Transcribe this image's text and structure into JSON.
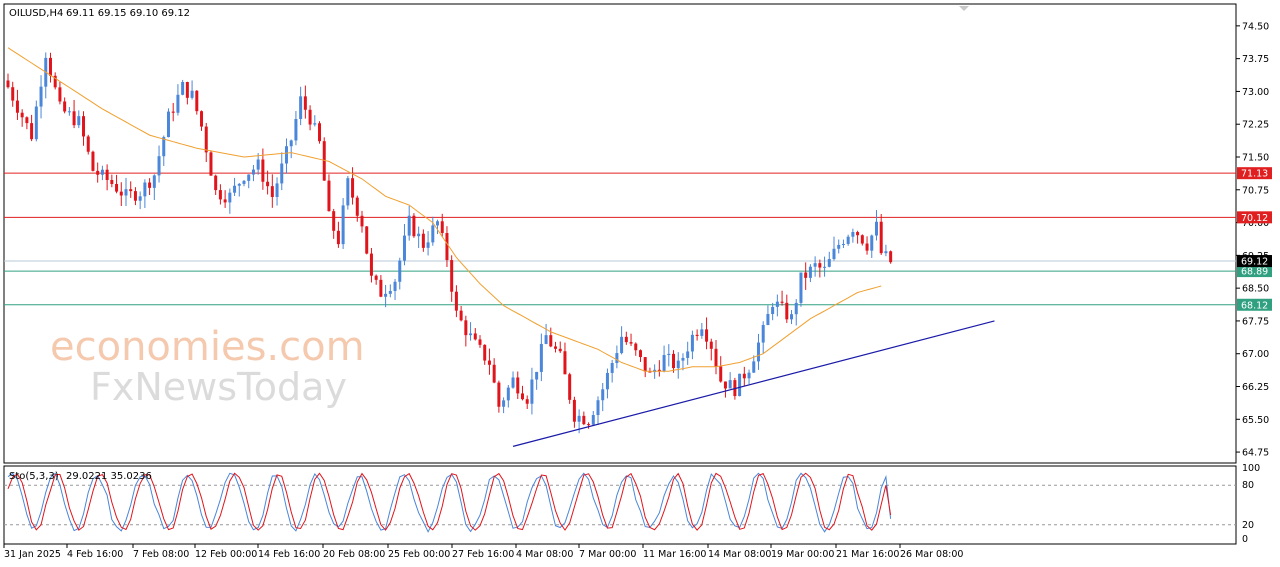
{
  "header": {
    "symbol": "OILUSD,H4",
    "ohlc": "69.11 69.15 69.10 69.12",
    "stoch_label": "Sto(5,3,3)",
    "stoch_values": "29.0221 35.0236"
  },
  "watermark": {
    "line1": "economies.com",
    "line2": "FxNewsToday"
  },
  "colors": {
    "bull": "#4a86d9",
    "bear": "#e0151c",
    "ma": "#f0a030",
    "trend": "#1a1aa8",
    "resistance": "#e02020",
    "support": "#30a080",
    "stoch_main": "#4a86d9",
    "stoch_signal": "#e0151c"
  },
  "chart_data": {
    "type": "candlestick",
    "ylim": [
      64.5,
      75.0
    ],
    "y_ticks": [
      "74.50",
      "73.75",
      "73.00",
      "72.25",
      "71.50",
      "70.75",
      "70.00",
      "69.25",
      "68.50",
      "67.75",
      "67.00",
      "66.25",
      "65.50",
      "64.75"
    ],
    "x_labels": [
      "31 Jan 2025",
      "4 Feb 16:00",
      "7 Feb 08:00",
      "12 Feb 00:00",
      "14 Feb 16:00",
      "20 Feb 08:00",
      "25 Feb 00:00",
      "27 Feb 16:00",
      "4 Mar 08:00",
      "7 Mar 00:00",
      "11 Mar 16:00",
      "14 Mar 08:00",
      "19 Mar 00:00",
      "21 Mar 16:00",
      "26 Mar 08:00"
    ],
    "current_price": "69.12",
    "resistance_levels": [
      "71.13",
      "70.12"
    ],
    "support_levels": [
      "68.89",
      "68.12"
    ],
    "close_path": [
      [
        0,
        73.1
      ],
      [
        5,
        72.0
      ],
      [
        8,
        73.9
      ],
      [
        11,
        72.6
      ],
      [
        15,
        72.3
      ],
      [
        18,
        71.2
      ],
      [
        22,
        70.9
      ],
      [
        25,
        70.6
      ],
      [
        28,
        70.7
      ],
      [
        31,
        71.1
      ],
      [
        34,
        72.4
      ],
      [
        37,
        73.1
      ],
      [
        39,
        72.9
      ],
      [
        41,
        72.2
      ],
      [
        44,
        70.7
      ],
      [
        47,
        70.6
      ],
      [
        50,
        71.1
      ],
      [
        53,
        71.3
      ],
      [
        56,
        70.6
      ],
      [
        60,
        71.9
      ],
      [
        62,
        72.8
      ],
      [
        64,
        72.4
      ],
      [
        66,
        71.8
      ],
      [
        68,
        70.1
      ],
      [
        70,
        69.6
      ],
      [
        72,
        70.9
      ],
      [
        75,
        70.0
      ],
      [
        77,
        68.7
      ],
      [
        79,
        68.4
      ],
      [
        82,
        68.7
      ],
      [
        85,
        70.0
      ],
      [
        88,
        69.5
      ],
      [
        91,
        70.0
      ],
      [
        93,
        69.2
      ],
      [
        95,
        67.9
      ],
      [
        99,
        67.2
      ],
      [
        102,
        66.8
      ],
      [
        104,
        65.8
      ],
      [
        107,
        66.4
      ],
      [
        110,
        66.0
      ],
      [
        114,
        67.4
      ],
      [
        117,
        66.9
      ],
      [
        120,
        65.6
      ],
      [
        123,
        65.5
      ],
      [
        126,
        66.2
      ],
      [
        130,
        67.4
      ],
      [
        133,
        67.0
      ],
      [
        136,
        66.5
      ],
      [
        139,
        66.9
      ],
      [
        142,
        66.7
      ],
      [
        145,
        67.4
      ],
      [
        147,
        67.7
      ],
      [
        149,
        67.2
      ],
      [
        151,
        66.4
      ],
      [
        154,
        66.2
      ],
      [
        157,
        66.7
      ],
      [
        160,
        67.5
      ],
      [
        162,
        68.2
      ],
      [
        166,
        67.8
      ],
      [
        168,
        68.7
      ],
      [
        171,
        69.0
      ],
      [
        173,
        68.9
      ],
      [
        176,
        69.5
      ],
      [
        179,
        69.9
      ],
      [
        182,
        69.5
      ],
      [
        184,
        69.9
      ],
      [
        185,
        69.3
      ],
      [
        187,
        69.1
      ]
    ],
    "ma_path": [
      [
        0,
        74.0
      ],
      [
        10,
        73.3
      ],
      [
        20,
        72.6
      ],
      [
        30,
        72.0
      ],
      [
        40,
        71.7
      ],
      [
        50,
        71.5
      ],
      [
        60,
        71.6
      ],
      [
        68,
        71.4
      ],
      [
        75,
        71.0
      ],
      [
        80,
        70.6
      ],
      [
        85,
        70.4
      ],
      [
        90,
        70.0
      ],
      [
        95,
        69.2
      ],
      [
        100,
        68.6
      ],
      [
        105,
        68.1
      ],
      [
        110,
        67.8
      ],
      [
        115,
        67.5
      ],
      [
        120,
        67.3
      ],
      [
        125,
        67.1
      ],
      [
        130,
        66.8
      ],
      [
        135,
        66.6
      ],
      [
        140,
        66.6
      ],
      [
        145,
        66.7
      ],
      [
        150,
        66.7
      ],
      [
        155,
        66.8
      ],
      [
        160,
        67.0
      ],
      [
        165,
        67.4
      ],
      [
        170,
        67.8
      ],
      [
        175,
        68.1
      ],
      [
        180,
        68.4
      ],
      [
        185,
        68.55
      ]
    ],
    "trendline": [
      [
        107,
        64.88
      ],
      [
        209,
        67.75
      ]
    ],
    "stochastic": {
      "ylim": [
        0,
        100
      ],
      "levels": [
        "100",
        "80",
        "20",
        "0"
      ],
      "main": "29.0221",
      "signal": "35.0236"
    }
  }
}
